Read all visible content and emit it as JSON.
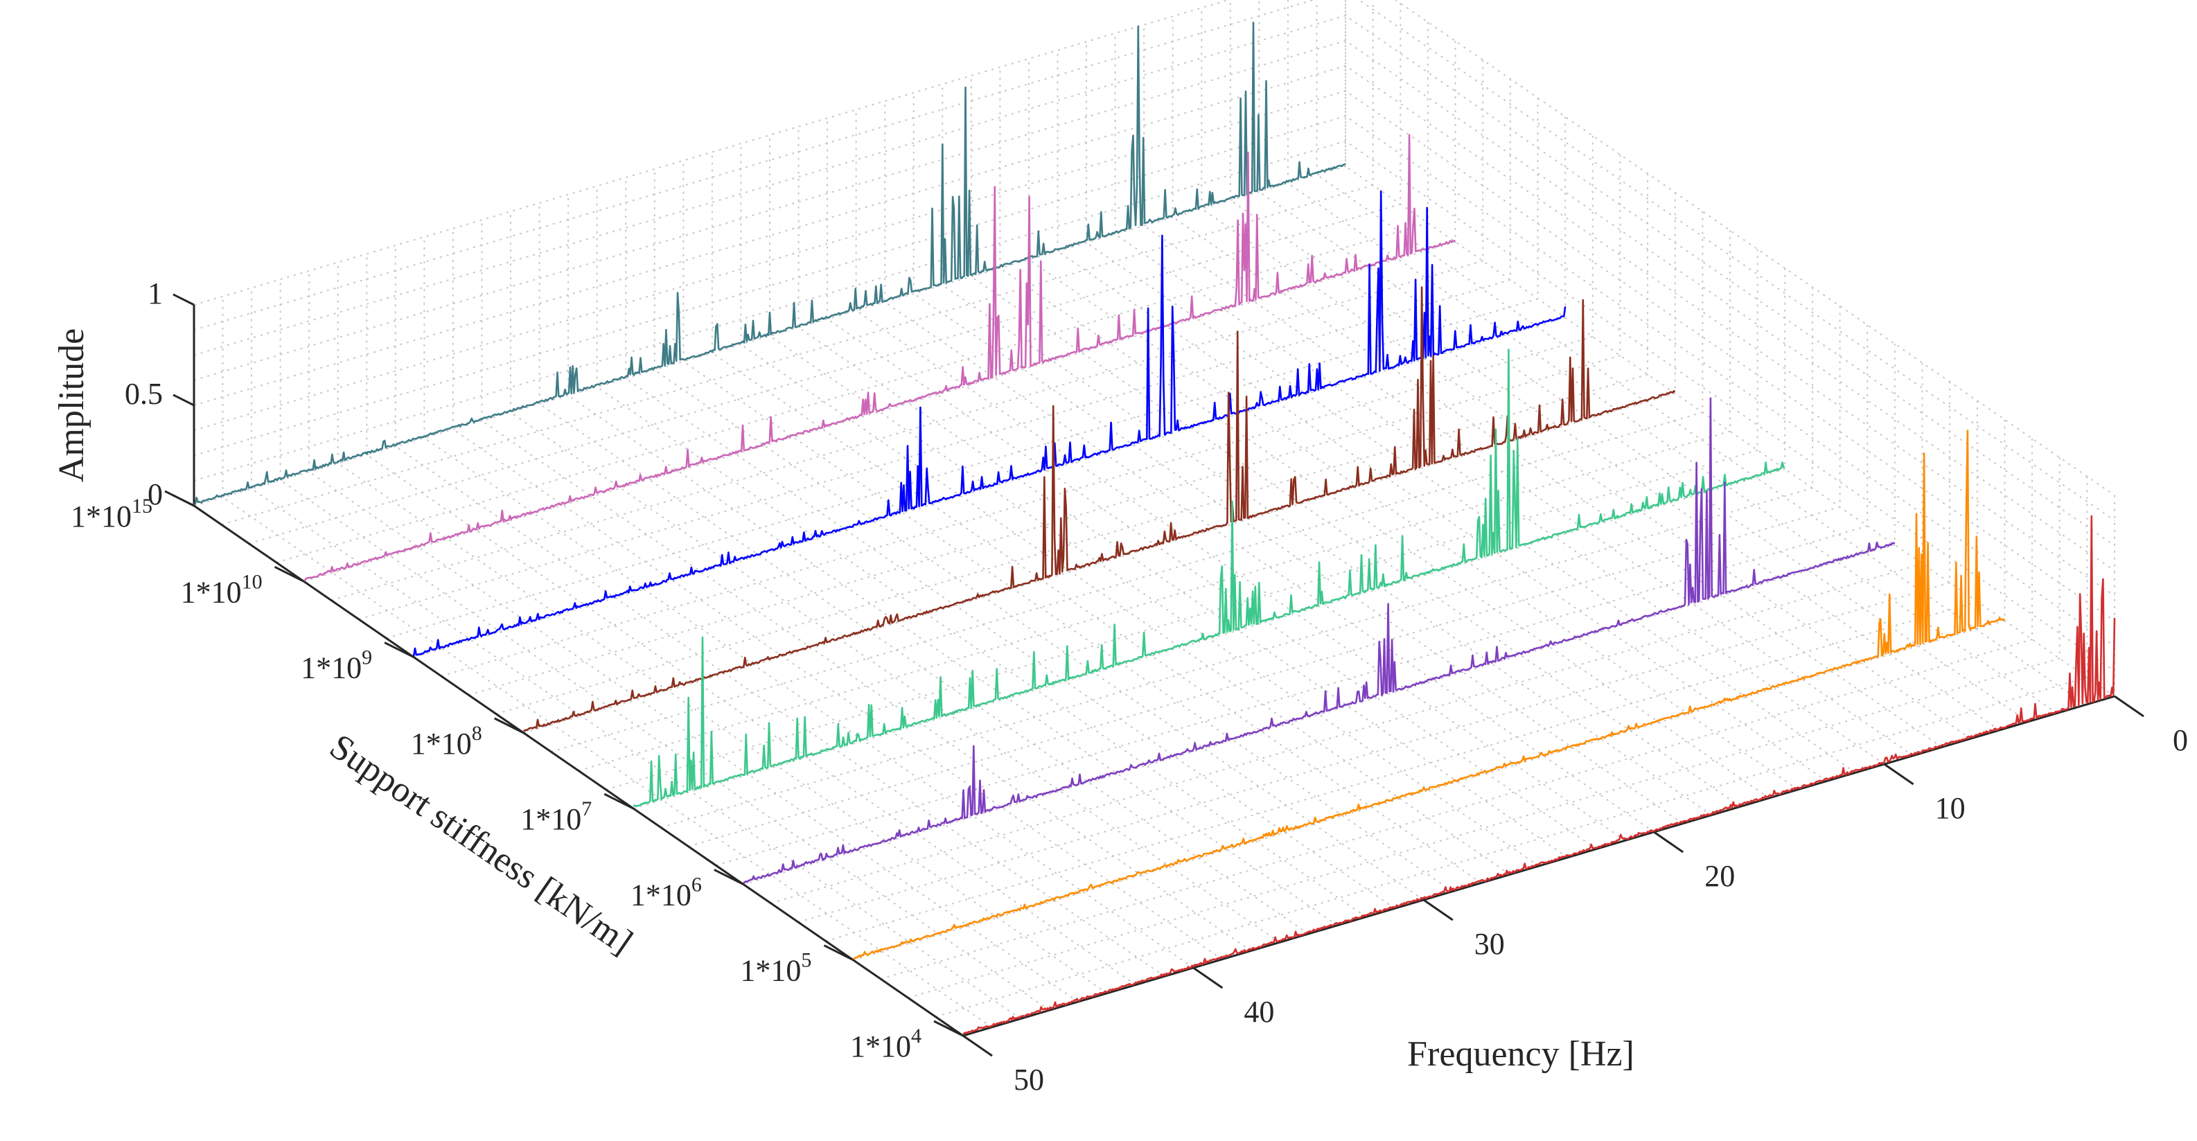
{
  "chart_data": {
    "type": "waterfall-line",
    "xlabel": "Frequency [Hz]",
    "ylabel": "Support stiffness [kN/m]",
    "zlabel": "Amplitude",
    "xlim": [
      0,
      50
    ],
    "zlim": [
      0,
      1
    ],
    "frequency_ticks": [
      "0",
      "10",
      "20",
      "30",
      "40",
      "50"
    ],
    "amplitude_ticks": [
      "0",
      "0.5",
      "1"
    ],
    "stiffness_ticks": [
      {
        "base": "1*10",
        "exp": "4"
      },
      {
        "base": "1*10",
        "exp": "5"
      },
      {
        "base": "1*10",
        "exp": "6"
      },
      {
        "base": "1*10",
        "exp": "7"
      },
      {
        "base": "1*10",
        "exp": "8"
      },
      {
        "base": "1*10",
        "exp": "9"
      },
      {
        "base": "1*10",
        "exp": "10"
      },
      {
        "base": "1*10",
        "exp": "15"
      }
    ],
    "grid": true,
    "series": [
      {
        "name": "1*10^4",
        "color": "#d32f2f",
        "dominant_peaks": [
          {
            "f": 1.0,
            "a": 0.93
          },
          {
            "f": 0.5,
            "a": 0.6
          },
          {
            "f": 1.6,
            "a": 0.4
          }
        ],
        "noise": 0.08,
        "region": [
          0,
          5
        ]
      },
      {
        "name": "1*10^5",
        "color": "#ff8c00",
        "dominant_peaks": [
          {
            "f": 1.6,
            "a": 1.0
          },
          {
            "f": 3.5,
            "a": 0.95
          },
          {
            "f": 5.0,
            "a": 0.3
          }
        ],
        "noise": 0.06,
        "region": [
          2,
          8
        ]
      },
      {
        "name": "1*10^6",
        "color": "#7e3fc0",
        "dominant_peaks": [
          {
            "f": 8.0,
            "a": 1.0
          },
          {
            "f": 8.6,
            "a": 0.7
          },
          {
            "f": 22.0,
            "a": 0.45
          },
          {
            "f": 40.0,
            "a": 0.35
          }
        ],
        "noise": 0.12,
        "region": [
          5,
          25
        ]
      },
      {
        "name": "1*10^7",
        "color": "#3cc88c",
        "dominant_peaks": [
          {
            "f": 12.0,
            "a": 1.0
          },
          {
            "f": 12.8,
            "a": 0.5
          },
          {
            "f": 24.0,
            "a": 0.65
          },
          {
            "f": 47.0,
            "a": 0.75
          }
        ],
        "noise": 0.22,
        "region": [
          10,
          50
        ]
      },
      {
        "name": "1*10^8",
        "color": "#8b2e1e",
        "dominant_peaks": [
          {
            "f": 4.0,
            "a": 0.6
          },
          {
            "f": 11.0,
            "a": 0.9
          },
          {
            "f": 19.0,
            "a": 0.95
          },
          {
            "f": 27.0,
            "a": 0.85
          }
        ],
        "noise": 0.14,
        "region": [
          2,
          30
        ]
      },
      {
        "name": "1*10^9",
        "color": "#0000ff",
        "dominant_peaks": [
          {
            "f": 6.0,
            "a": 0.75
          },
          {
            "f": 8.0,
            "a": 0.9
          },
          {
            "f": 17.5,
            "a": 1.0
          },
          {
            "f": 28.0,
            "a": 0.5
          }
        ],
        "noise": 0.14,
        "region": [
          3,
          30
        ]
      },
      {
        "name": "1*10^10",
        "color": "#cc66b8",
        "dominant_peaks": [
          {
            "f": 2.0,
            "a": 0.6
          },
          {
            "f": 9.0,
            "a": 0.75
          },
          {
            "f": 18.5,
            "a": 0.85
          },
          {
            "f": 20.0,
            "a": 0.95
          }
        ],
        "noise": 0.14,
        "region": [
          1,
          35
        ]
      },
      {
        "name": "1*10^15",
        "color": "#3f7c87",
        "dominant_peaks": [
          {
            "f": 4.0,
            "a": 0.85
          },
          {
            "f": 9.0,
            "a": 1.0
          },
          {
            "f": 16.5,
            "a": 0.95
          },
          {
            "f": 17.5,
            "a": 0.7
          },
          {
            "f": 29.0,
            "a": 0.35
          }
        ],
        "noise": 0.14,
        "region": [
          1,
          35
        ]
      }
    ]
  }
}
